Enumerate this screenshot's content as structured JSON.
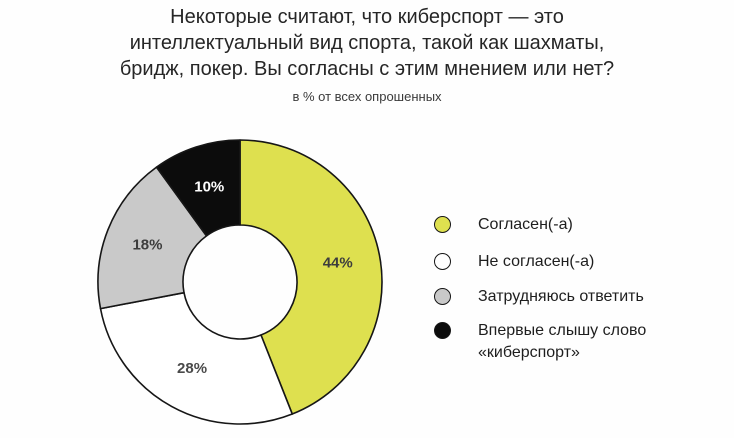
{
  "header": {
    "title_lines": [
      "Некоторые считают, что киберспорт — это",
      "интеллектуальный вид спорта, такой как шахматы,",
      "бридж, покер. Вы согласны с этим мнением или нет?"
    ],
    "subtitle": "в % от всех опрошенных"
  },
  "chart_data": {
    "type": "pie",
    "donut": true,
    "title": "Некоторые считают, что киберспорт — это интеллектуальный вид спорта, такой как шахматы, бридж, покер. Вы согласны с этим мнением или нет?",
    "subtitle": "в % от всех опрошенных",
    "unit": "%",
    "start_angle_deg": 0,
    "direction": "clockwise",
    "categories": [
      "Согласен(-а)",
      "Не согласен(-а)",
      "Затрудняюсь ответить",
      "Впервые слышу слово «киберспорт»"
    ],
    "values": [
      44,
      28,
      18,
      10
    ],
    "labels": [
      "44%",
      "28%",
      "18%",
      "10%"
    ],
    "colors": [
      "#dee04f",
      "#ffffff",
      "#c9c9c9",
      "#0c0c0c"
    ],
    "label_colors": [
      "#3d3d3d",
      "#4a4a4a",
      "#3d3d3d",
      "#ffffff"
    ],
    "stroke_color": "#161616",
    "legend_position": "right"
  }
}
